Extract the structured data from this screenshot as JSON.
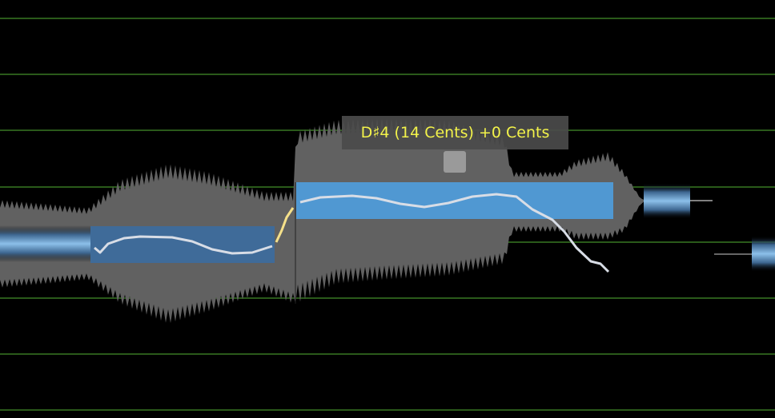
{
  "tooltip": {
    "text": "D♯4 (14 Cents) +0 Cents",
    "text_color": "#f3f34a"
  },
  "colors": {
    "grid": "#2a5a1a",
    "waveform": "#616161",
    "note_selected": "#4f9ad6",
    "note": "#3d6c9c",
    "pitch_curve": "#d8dde6",
    "transition": "#f5e08a"
  },
  "notes": [
    {
      "name": "note-1",
      "selected": false
    },
    {
      "name": "note-2",
      "pitch": "D♯4",
      "selected": true
    }
  ]
}
